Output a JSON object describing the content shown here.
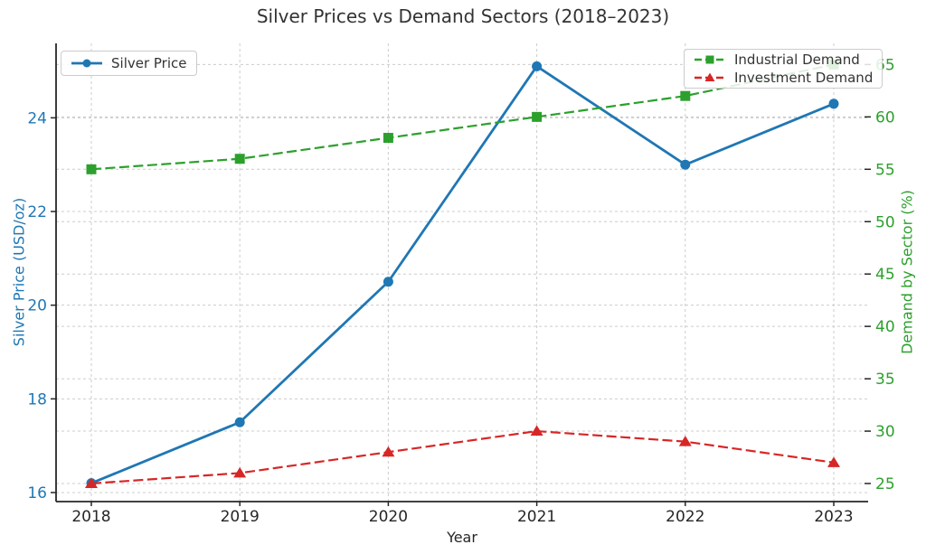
{
  "chart_data": {
    "type": "line",
    "title": "Silver Prices vs Demand Sectors (2018–2023)",
    "xlabel": "Year",
    "ylabel_left": "Silver Price (USD/oz)",
    "ylabel_right": "Demand by Sector (%)",
    "x": [
      2018,
      2019,
      2020,
      2021,
      2022,
      2023
    ],
    "series": [
      {
        "name": "Silver Price",
        "axis": "left",
        "color": "#1f77b4",
        "marker": "circle",
        "linestyle": "solid",
        "values": [
          16.2,
          17.5,
          20.5,
          25.1,
          23.0,
          24.3
        ]
      },
      {
        "name": "Industrial Demand",
        "axis": "right",
        "color": "#2ca02c",
        "marker": "square",
        "linestyle": "dashed",
        "values": [
          55,
          56,
          58,
          60,
          62,
          65
        ]
      },
      {
        "name": "Investment Demand",
        "axis": "right",
        "color": "#d62728",
        "marker": "triangle",
        "linestyle": "dashed",
        "values": [
          25,
          26,
          28,
          30,
          29,
          27
        ]
      }
    ],
    "left_axis": {
      "ticks": [
        16,
        18,
        20,
        22,
        24
      ],
      "range": [
        15.8,
        25.6
      ],
      "color": "#1f77b4"
    },
    "right_axis": {
      "ticks": [
        25,
        30,
        35,
        40,
        45,
        50,
        55,
        60,
        65
      ],
      "range": [
        23.3,
        67.0
      ],
      "color": "#2ca02c"
    },
    "grid": true,
    "grid_color": "#cccccc",
    "spine_color": "#262626",
    "tick_label_color_x": "#262626",
    "legend_position_left": "upper left",
    "legend_position_right": "upper right"
  }
}
